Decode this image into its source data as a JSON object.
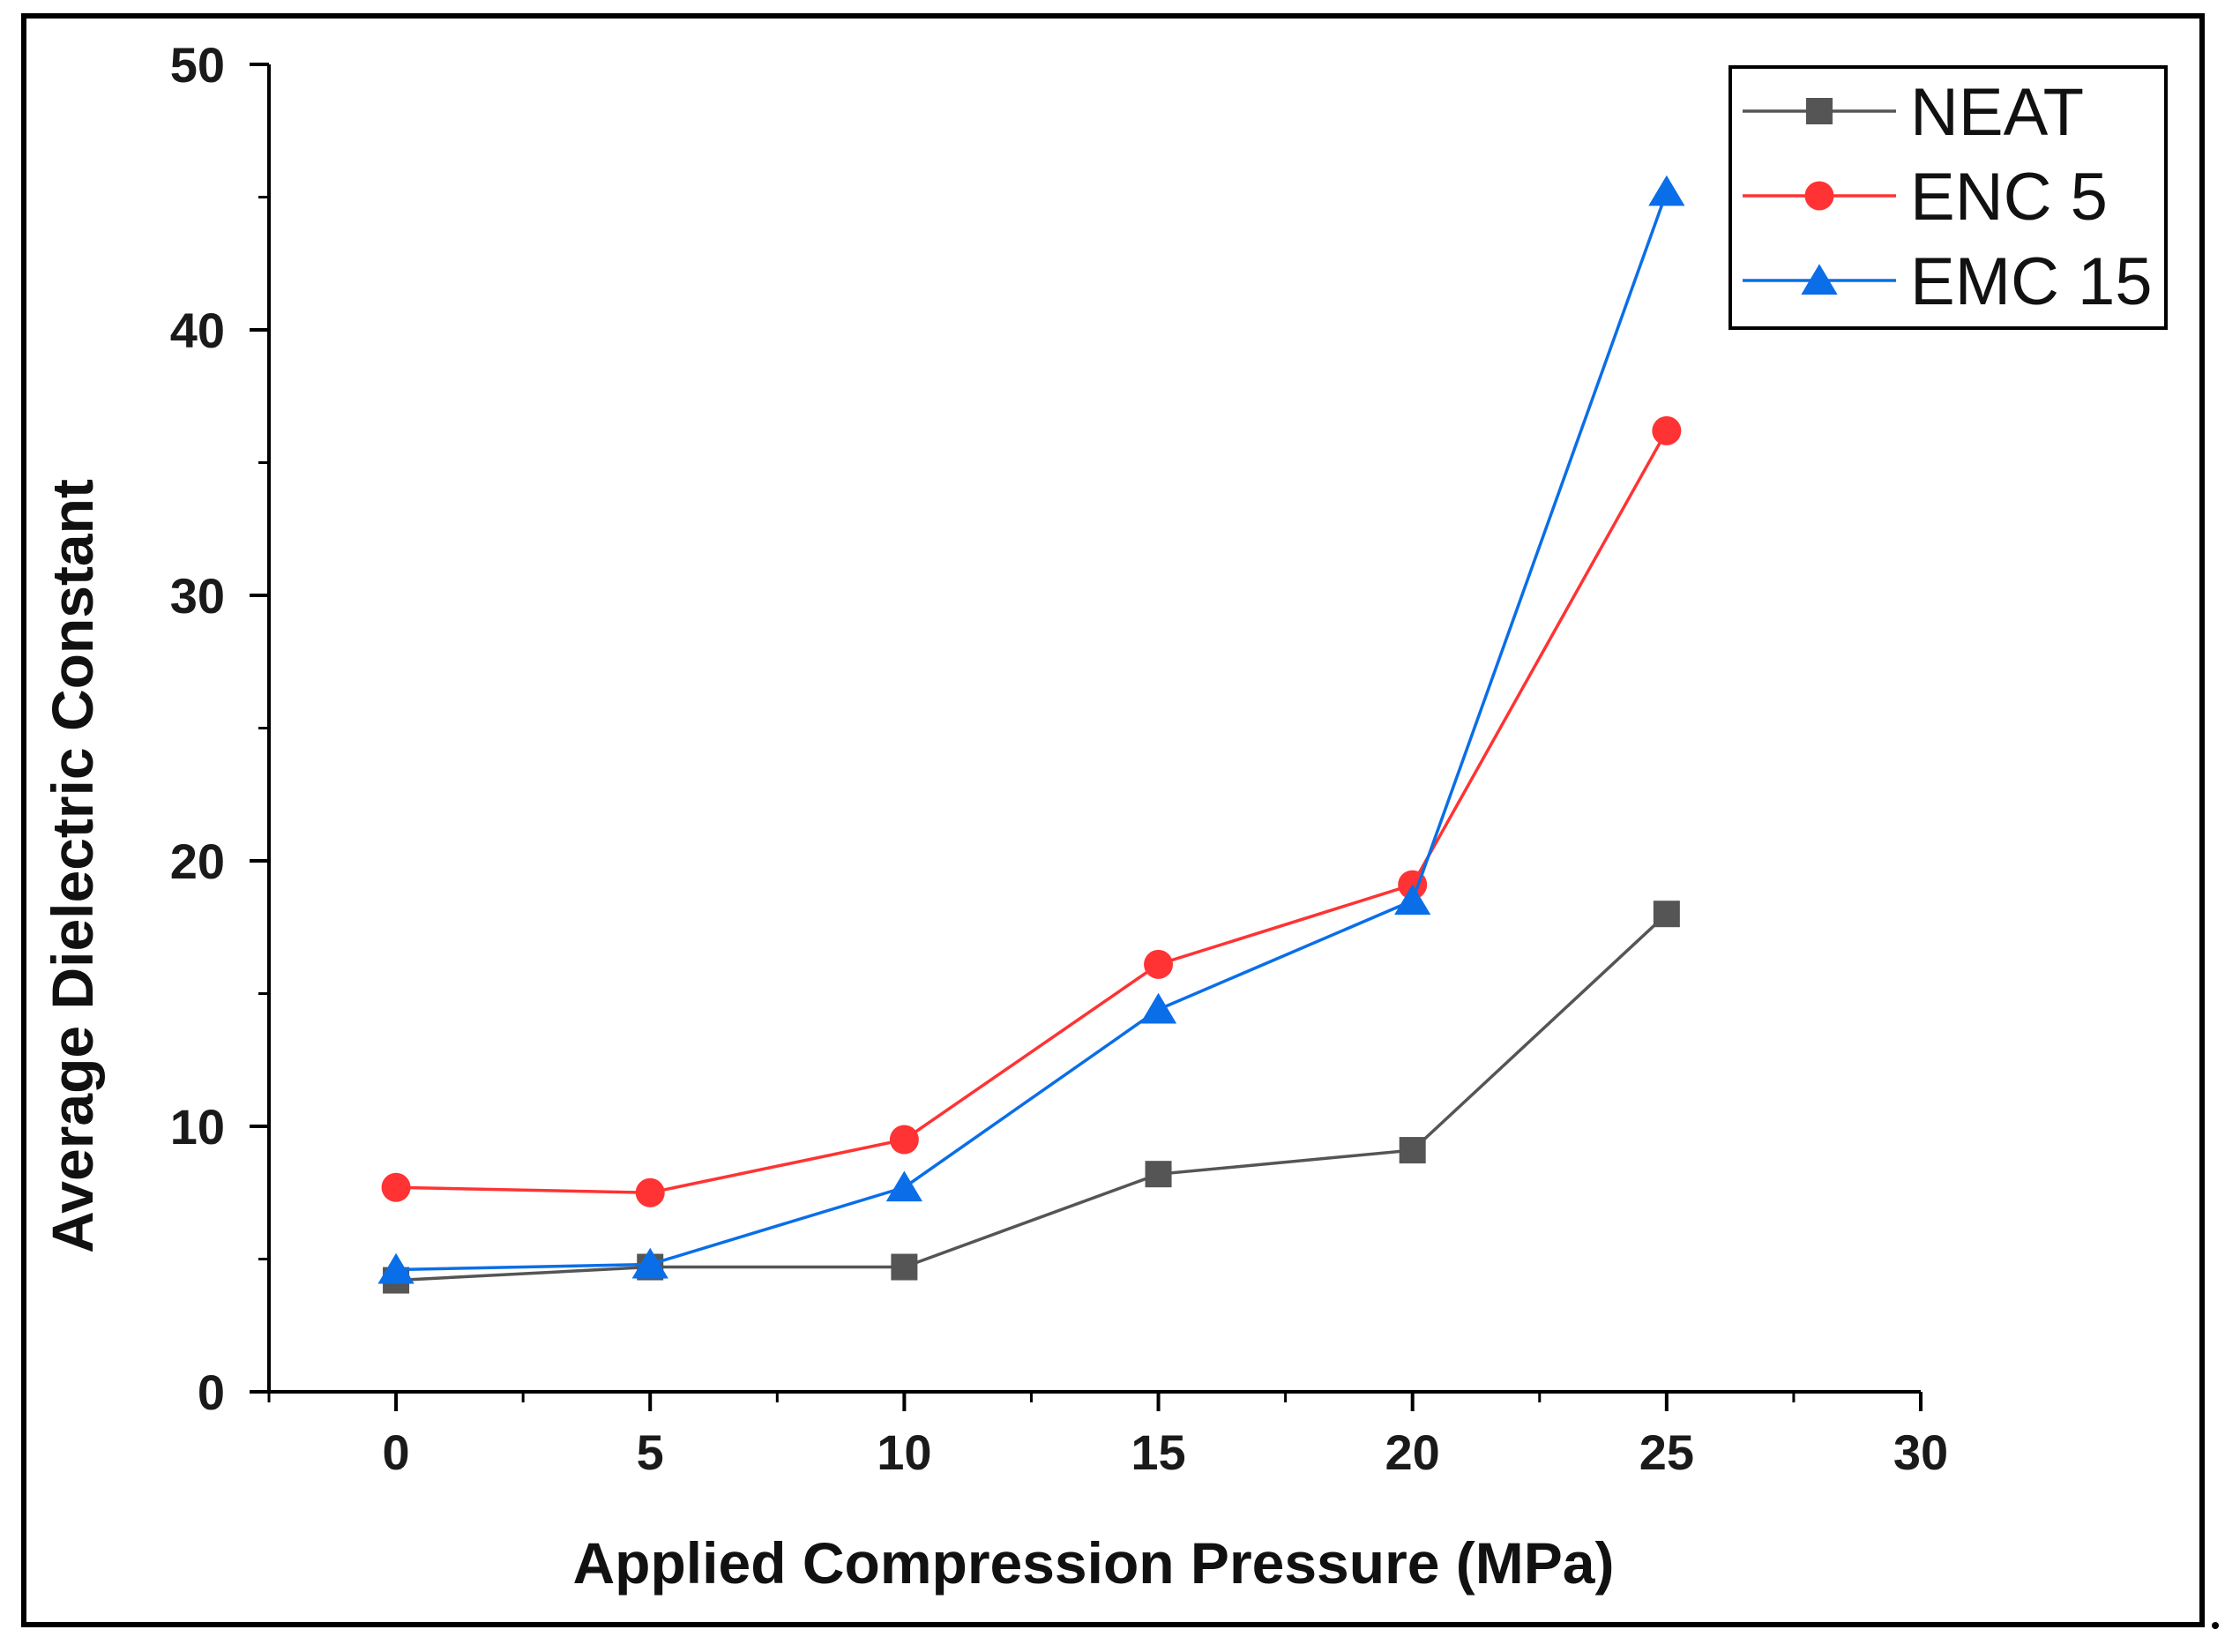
{
  "chart_data": {
    "type": "line",
    "title": "",
    "xlabel": "Applied Compression Pressure (MPa)",
    "ylabel": "Average Dielectric Constant",
    "xlim": [
      -2.5,
      30
    ],
    "ylim": [
      0,
      50
    ],
    "x_ticks": [
      0,
      5,
      10,
      15,
      20,
      25,
      30
    ],
    "y_ticks": [
      0,
      10,
      20,
      30,
      40,
      50
    ],
    "x_tick_labels": [
      "0",
      "5",
      "10",
      "15",
      "20",
      "25",
      "30"
    ],
    "y_tick_labels": [
      "0",
      "10",
      "20",
      "30",
      "40",
      "50"
    ],
    "grid": false,
    "legend_position": "top-right",
    "x": [
      0,
      5,
      10,
      15,
      20,
      25
    ],
    "series": [
      {
        "name": "NEAT",
        "color": "#555555",
        "marker": "square",
        "values": [
          4.2,
          4.7,
          4.7,
          8.2,
          9.1,
          18.0
        ]
      },
      {
        "name": "ENC 5",
        "color": "#ff3333",
        "marker": "circle",
        "values": [
          7.7,
          7.5,
          9.5,
          16.1,
          19.1,
          36.2
        ]
      },
      {
        "name": "EMC 15",
        "color": "#0a6ee8",
        "marker": "triangle",
        "values": [
          4.6,
          4.8,
          7.7,
          14.4,
          18.5,
          45.2
        ]
      }
    ]
  }
}
